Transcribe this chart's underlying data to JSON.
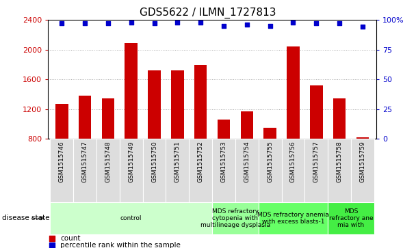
{
  "title": "GDS5622 / ILMN_1727813",
  "samples": [
    "GSM1515746",
    "GSM1515747",
    "GSM1515748",
    "GSM1515749",
    "GSM1515750",
    "GSM1515751",
    "GSM1515752",
    "GSM1515753",
    "GSM1515754",
    "GSM1515755",
    "GSM1515756",
    "GSM1515757",
    "GSM1515758",
    "GSM1515759"
  ],
  "counts": [
    1270,
    1380,
    1340,
    2090,
    1720,
    1720,
    1790,
    1060,
    1170,
    950,
    2040,
    1520,
    1340,
    820
  ],
  "percentiles": [
    97,
    97,
    97,
    98,
    97,
    98,
    98,
    95,
    96,
    95,
    98,
    97,
    97,
    94
  ],
  "ylim_left": [
    800,
    2400
  ],
  "ylim_right": [
    0,
    100
  ],
  "yticks_left": [
    800,
    1200,
    1600,
    2000,
    2400
  ],
  "yticks_right": [
    0,
    25,
    50,
    75,
    100
  ],
  "bar_color": "#cc0000",
  "dot_color": "#0000cc",
  "grid_color": "#aaaaaa",
  "disease_groups": [
    {
      "label": "control",
      "start": 0,
      "end": 7,
      "color": "#ccffcc"
    },
    {
      "label": "MDS refractory\ncytopenia with\nmultilineage dysplasia",
      "start": 7,
      "end": 9,
      "color": "#99ff99"
    },
    {
      "label": "MDS refractory anemia\nwith excess blasts-1",
      "start": 9,
      "end": 12,
      "color": "#66ff66"
    },
    {
      "label": "MDS\nrefractory ane\nmia with",
      "start": 12,
      "end": 14,
      "color": "#44ee44"
    }
  ],
  "legend_count_label": "count",
  "legend_pct_label": "percentile rank within the sample",
  "sample_box_color": "#dddddd",
  "title_fontsize": 11,
  "tick_fontsize": 8,
  "sample_fontsize": 6.5,
  "disease_fontsize": 6.5,
  "legend_fontsize": 7.5
}
